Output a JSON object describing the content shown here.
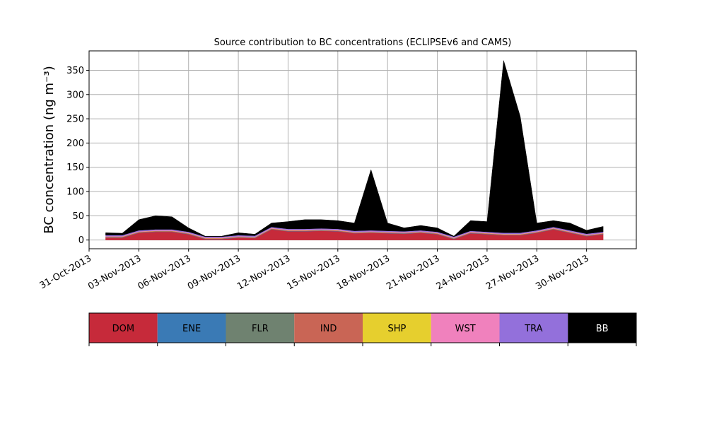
{
  "chart_data": {
    "type": "stacked_area",
    "title": "Source contribution to BC concentrations (ECLIPSEv6 and CAMS)",
    "y_label": "BC concentration (ng m⁻³)",
    "x": [
      "01-Nov-2013",
      "02-Nov-2013",
      "03-Nov-2013",
      "04-Nov-2013",
      "05-Nov-2013",
      "06-Nov-2013",
      "07-Nov-2013",
      "08-Nov-2013",
      "09-Nov-2013",
      "10-Nov-2013",
      "11-Nov-2013",
      "12-Nov-2013",
      "13-Nov-2013",
      "14-Nov-2013",
      "15-Nov-2013",
      "16-Nov-2013",
      "17-Nov-2013",
      "18-Nov-2013",
      "19-Nov-2013",
      "20-Nov-2013",
      "21-Nov-2013",
      "22-Nov-2013",
      "23-Nov-2013",
      "24-Nov-2013",
      "25-Nov-2013",
      "26-Nov-2013",
      "27-Nov-2013",
      "28-Nov-2013",
      "29-Nov-2013",
      "30-Nov-2013",
      "01-Dec-2013"
    ],
    "series": [
      {
        "name": "DOM",
        "color": "#c62a3a",
        "values": [
          5,
          5,
          15,
          17,
          17,
          12,
          2,
          2,
          5,
          4,
          22,
          18,
          18,
          19,
          18,
          14,
          15,
          14,
          13,
          15,
          12,
          2,
          14,
          12,
          10,
          10,
          15,
          22,
          15,
          8,
          12
        ]
      },
      {
        "name": "ENE",
        "color": "#3a7ab5",
        "values": [
          0.5,
          0.5,
          0.5,
          0.5,
          0.5,
          0.5,
          0.5,
          0.5,
          0.5,
          0.5,
          0.5,
          0.5,
          0.5,
          0.5,
          0.5,
          0.5,
          0.5,
          0.5,
          0.5,
          0.5,
          0.5,
          0.5,
          0.5,
          0.5,
          0.5,
          0.5,
          0.5,
          0.5,
          0.5,
          0.5,
          0.5
        ]
      },
      {
        "name": "FLR",
        "color": "#6f8270",
        "values": [
          0.2,
          0.2,
          0.2,
          0.2,
          0.2,
          0.2,
          0.2,
          0.2,
          0.2,
          0.2,
          0.2,
          0.2,
          0.2,
          0.2,
          0.2,
          0.2,
          0.2,
          0.2,
          0.2,
          0.2,
          0.2,
          0.2,
          0.2,
          0.2,
          0.2,
          0.2,
          0.2,
          0.2,
          0.2,
          0.2,
          0.2
        ]
      },
      {
        "name": "IND",
        "color": "#c96555",
        "values": [
          1,
          1,
          1,
          1,
          1,
          1,
          1,
          1,
          1,
          1,
          1,
          1,
          1,
          1,
          1,
          1,
          1,
          1,
          1,
          1,
          1,
          1,
          1,
          1,
          1,
          1,
          1,
          1,
          1,
          1,
          1
        ]
      },
      {
        "name": "SHP",
        "color": "#e6cf2e",
        "values": [
          0.3,
          0.3,
          0.3,
          0.3,
          0.3,
          0.3,
          0.3,
          0.3,
          0.3,
          0.3,
          0.3,
          0.3,
          0.3,
          0.3,
          0.3,
          0.3,
          0.3,
          0.3,
          0.3,
          0.3,
          0.3,
          0.3,
          0.3,
          0.3,
          0.3,
          0.3,
          0.3,
          0.3,
          0.3,
          0.3,
          0.3
        ]
      },
      {
        "name": "WST",
        "color": "#f081bd",
        "values": [
          1,
          1,
          1,
          1,
          1,
          1,
          1,
          1,
          1,
          1,
          1,
          1,
          1,
          1,
          1,
          1,
          1,
          1,
          1,
          1,
          1,
          1,
          1,
          1,
          1,
          1,
          1,
          1,
          1,
          1,
          1
        ]
      },
      {
        "name": "TRA",
        "color": "#9370db",
        "values": [
          2,
          2,
          2,
          2,
          2,
          2,
          2,
          2,
          2,
          2,
          2,
          2,
          2,
          2,
          2,
          2,
          2,
          2,
          2,
          2,
          2,
          2,
          2,
          2,
          2,
          2,
          2,
          2,
          2,
          2,
          2
        ]
      },
      {
        "name": "BB",
        "color": "#000000",
        "values": [
          5,
          4,
          22,
          28,
          26,
          8,
          1,
          1,
          5,
          3,
          8,
          15,
          19,
          18,
          17,
          16,
          125,
          16,
          7,
          10,
          8,
          1,
          21,
          21,
          355,
          240,
          15,
          13,
          15,
          7,
          11
        ]
      }
    ],
    "xlim": [
      "31-Oct-2013",
      "03-Dec-2013"
    ],
    "xticks": [
      "31-Oct-2013",
      "03-Nov-2013",
      "06-Nov-2013",
      "09-Nov-2013",
      "12-Nov-2013",
      "15-Nov-2013",
      "18-Nov-2013",
      "21-Nov-2013",
      "24-Nov-2013",
      "27-Nov-2013",
      "30-Nov-2013"
    ],
    "ylim": [
      -18,
      390
    ],
    "yticks": [
      0,
      50,
      100,
      150,
      200,
      250,
      300,
      350
    ],
    "grid": true
  }
}
